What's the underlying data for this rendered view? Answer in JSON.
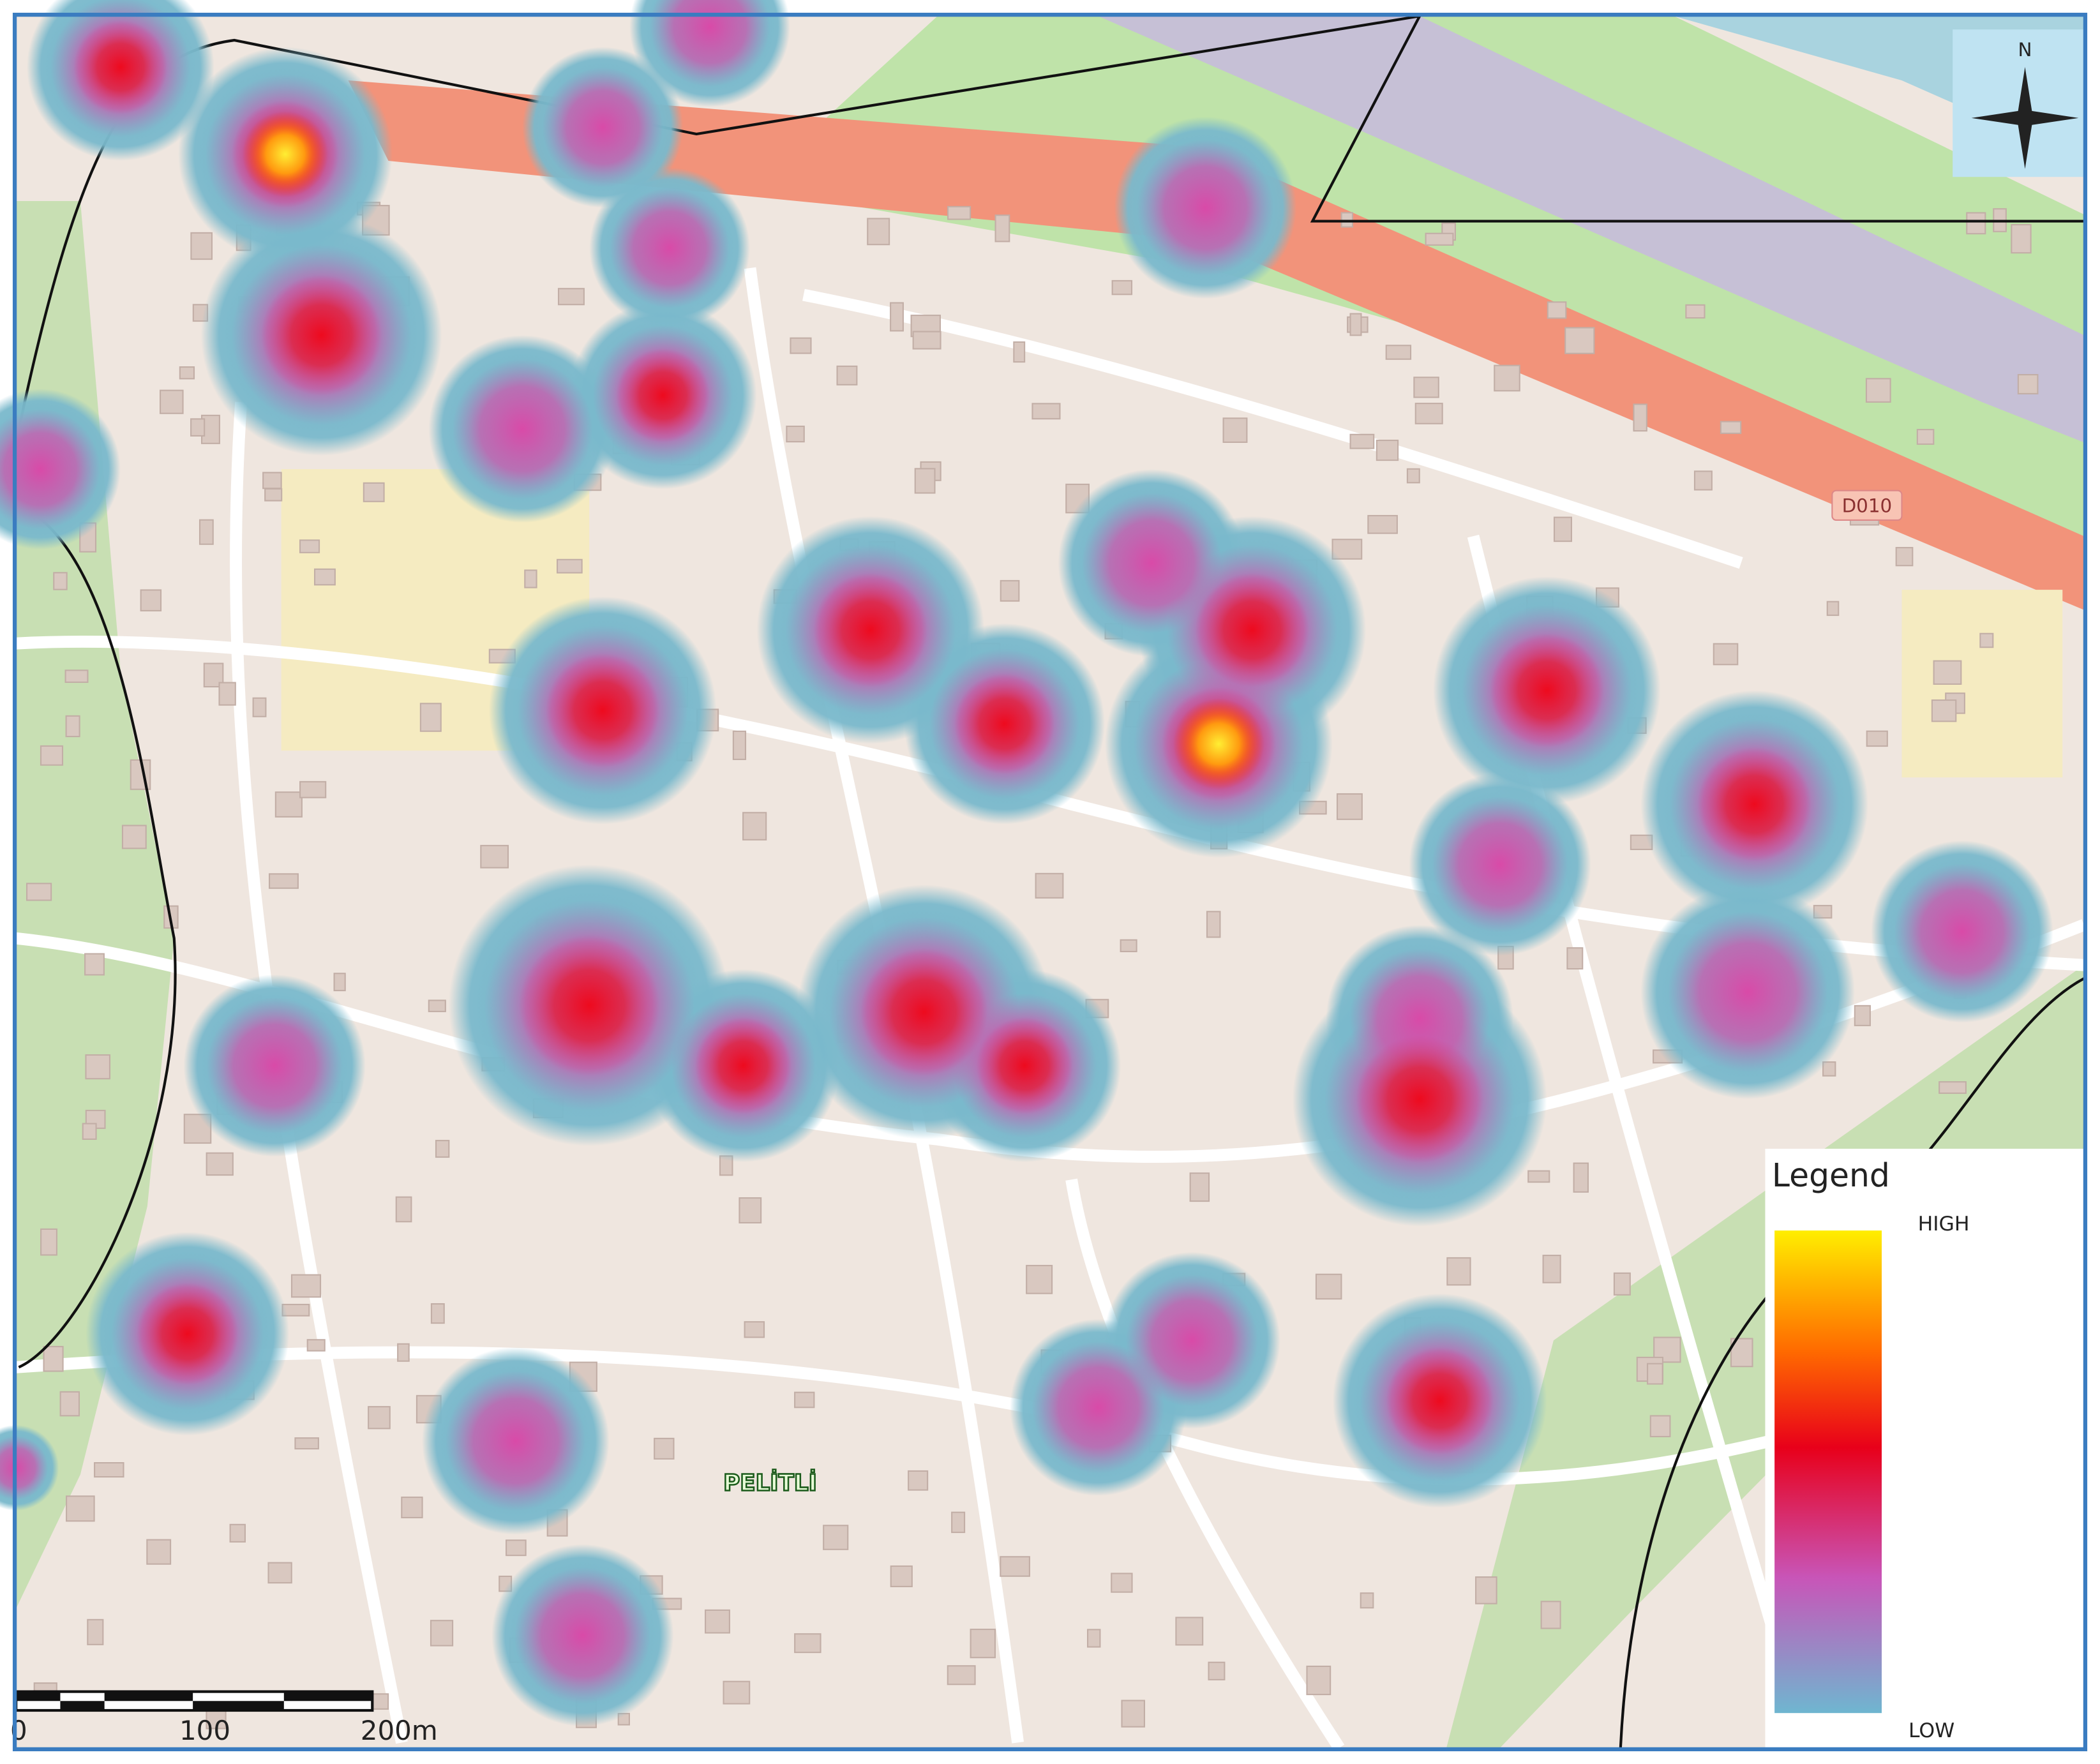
{
  "map": {
    "road_label": "D010",
    "place_label": "PELİTLİ",
    "north_label": "N"
  },
  "legend": {
    "title": "Legend",
    "high": "HIGH",
    "low": "LOW"
  },
  "scale_bar": {
    "labels": [
      "0",
      "100",
      "200m"
    ]
  }
}
